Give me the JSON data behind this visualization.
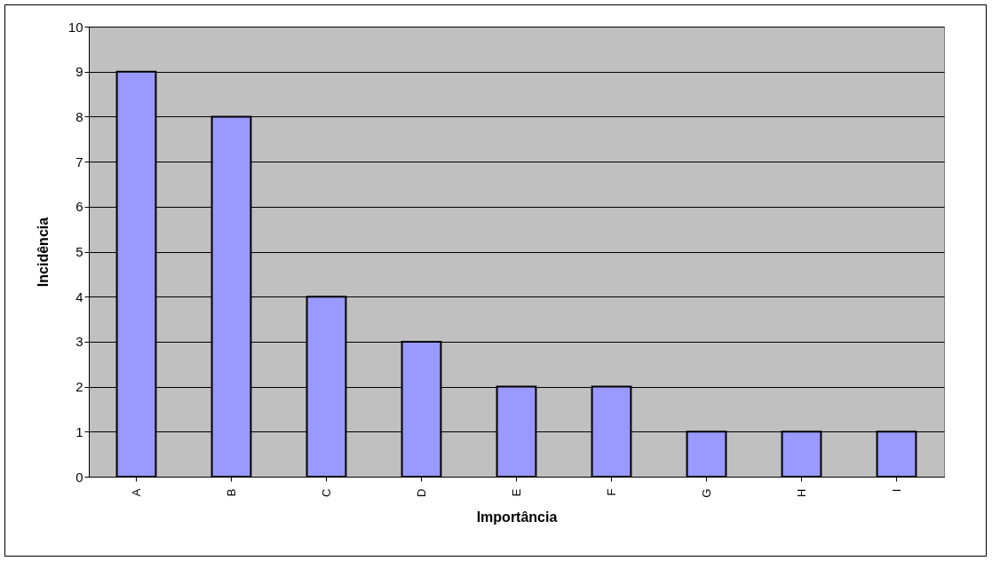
{
  "chart_data": {
    "type": "bar",
    "xlabel": "Importância",
    "ylabel": "Incidência",
    "categories": [
      "A",
      "B",
      "C",
      "D",
      "E",
      "F",
      "G",
      "H",
      "I"
    ],
    "values": [
      9,
      8,
      4,
      3,
      2,
      2,
      1,
      1,
      1
    ],
    "color": "#9999ff",
    "ylim": [
      0,
      10
    ],
    "yticks": [
      0,
      1,
      2,
      3,
      4,
      5,
      6,
      7,
      8,
      9,
      10
    ],
    "grid": "y"
  }
}
